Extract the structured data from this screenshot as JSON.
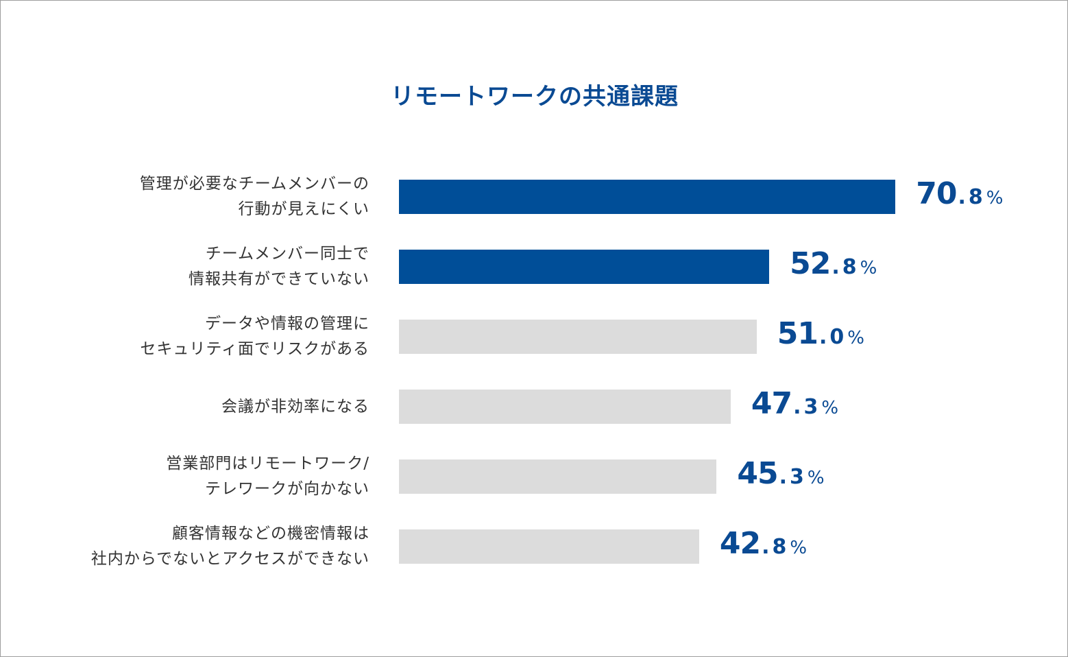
{
  "chart_data": {
    "type": "bar",
    "orientation": "horizontal",
    "title": "リモートワークの共通課題",
    "categories": [
      [
        "管理が必要なチームメンバーの",
        "行動が見えにくい"
      ],
      [
        "チームメンバー同士で",
        "情報共有ができていない"
      ],
      [
        "データや情報の管理に",
        "セキュリティ面でリスクがある"
      ],
      [
        "会議が非効率になる"
      ],
      [
        "営業部門はリモートワーク/",
        "テレワークが向かない"
      ],
      [
        "顧客情報などの機密情報は",
        "社内からでないとアクセスができない"
      ]
    ],
    "values": [
      70.8,
      52.8,
      51.0,
      47.3,
      45.3,
      42.8
    ],
    "value_labels": [
      {
        "int": "70",
        "dec": ".8",
        "pct": "%"
      },
      {
        "int": "52",
        "dec": ".8",
        "pct": "%"
      },
      {
        "int": "51",
        "dec": ".0",
        "pct": "%"
      },
      {
        "int": "47",
        "dec": ".3",
        "pct": "%"
      },
      {
        "int": "45",
        "dec": ".3",
        "pct": "%"
      },
      {
        "int": "42",
        "dec": ".8",
        "pct": "%"
      }
    ],
    "highlighted": [
      true,
      true,
      false,
      false,
      false,
      false
    ],
    "colors": {
      "highlight": "#004e98",
      "default": "#dcdcdc",
      "value_text": "#0a4a93",
      "title": "#0a4a93"
    },
    "xlim": [
      0,
      100
    ],
    "grid": false,
    "legend": "none"
  }
}
